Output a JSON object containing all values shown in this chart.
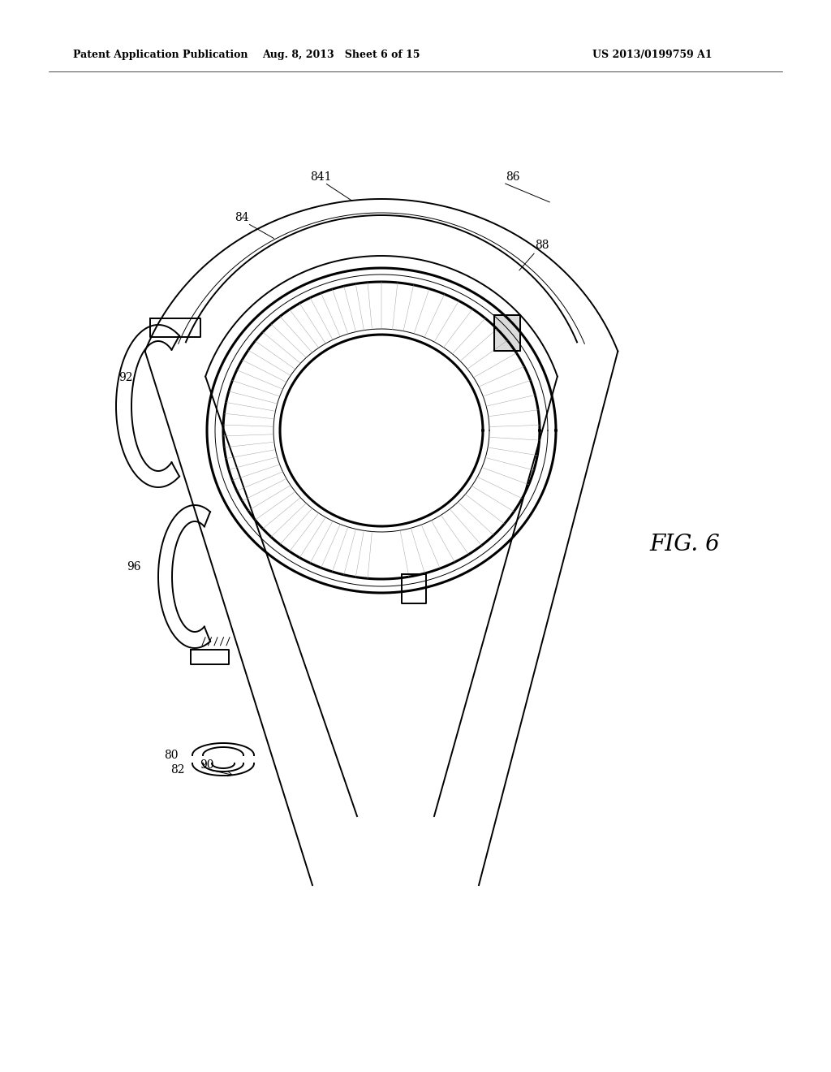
{
  "title_left": "Patent Application Publication",
  "title_mid": "Aug. 8, 2013   Sheet 6 of 15",
  "title_right": "US 2013/0199759 A1",
  "fig_label": "FIG. 6",
  "bg_color": "#ffffff",
  "line_color": "#000000",
  "gray_color": "#aaaaaa",
  "lw_heavy": 2.2,
  "lw_medium": 1.4,
  "lw_thin": 0.7,
  "lw_vthin": 0.4
}
